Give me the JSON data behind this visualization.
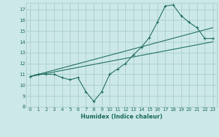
{
  "xlabel": "Humidex (Indice chaleur)",
  "bg_color": "#cce8e8",
  "grid_color": "#aacccc",
  "line_color": "#1a6b5a",
  "xlim": [
    -0.5,
    23.5
  ],
  "ylim": [
    8,
    17.6
  ],
  "xticks": [
    0,
    1,
    2,
    3,
    4,
    5,
    6,
    7,
    8,
    9,
    10,
    11,
    12,
    13,
    14,
    15,
    16,
    17,
    18,
    19,
    20,
    21,
    22,
    23
  ],
  "yticks": [
    8,
    9,
    10,
    11,
    12,
    13,
    14,
    15,
    16,
    17
  ],
  "line1_x": [
    0,
    1,
    2,
    3,
    4,
    5,
    6,
    7,
    8,
    9,
    10,
    11,
    12,
    13,
    14,
    15,
    16,
    17,
    18,
    19,
    20,
    21,
    22,
    23
  ],
  "line1_y": [
    10.8,
    11.0,
    11.0,
    11.0,
    10.7,
    10.5,
    10.7,
    9.4,
    8.5,
    9.4,
    11.0,
    11.5,
    12.0,
    12.8,
    13.5,
    14.4,
    15.8,
    17.3,
    17.4,
    16.4,
    15.8,
    15.3,
    14.3,
    14.3
  ],
  "line2_x": [
    0,
    23
  ],
  "line2_y": [
    10.8,
    15.3
  ],
  "line3_x": [
    0,
    23
  ],
  "line3_y": [
    10.8,
    14.0
  ],
  "tick_fontsize": 5.0,
  "xlabel_fontsize": 6.0
}
